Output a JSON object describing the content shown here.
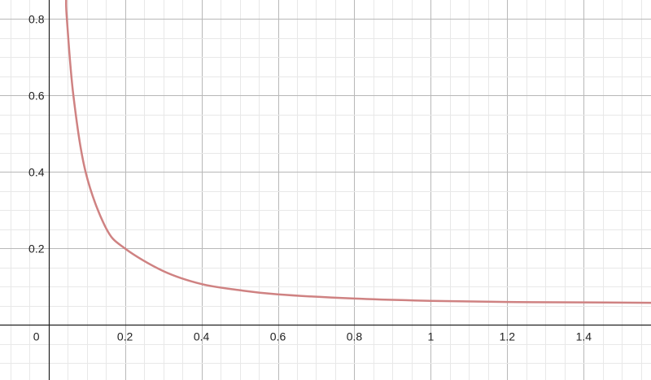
{
  "chart_data": {
    "type": "line",
    "title": "",
    "xlabel": "",
    "ylabel": "",
    "xlim": [
      -0.127,
      1.576
    ],
    "ylim": [
      -0.144,
      0.85
    ],
    "grid": true,
    "minor_grid_step": 0.05,
    "major_grid_step": 0.2,
    "x_ticks": [
      "0.2",
      "0.4",
      "0.6",
      "0.8",
      "1",
      "1.2",
      "1.4"
    ],
    "x_tick_values": [
      0.2,
      0.4,
      0.6,
      0.8,
      1,
      1.2,
      1.4
    ],
    "y_ticks": [
      "0.2",
      "0.4",
      "0.6",
      "0.8"
    ],
    "y_tick_values": [
      0.2,
      0.4,
      0.6,
      0.8
    ],
    "origin_label": "0",
    "series": [
      {
        "color": "#cf8282",
        "points": [
          [
            0.046,
            0.85
          ],
          [
            0.048,
            0.8
          ],
          [
            0.065,
            0.6
          ],
          [
            0.097,
            0.4
          ],
          [
            0.15,
            0.254
          ],
          [
            0.2,
            0.2
          ],
          [
            0.3,
            0.141
          ],
          [
            0.4,
            0.107
          ],
          [
            0.5,
            0.091
          ],
          [
            0.6,
            0.08
          ],
          [
            0.8,
            0.069
          ],
          [
            1.0,
            0.063
          ],
          [
            1.2,
            0.06
          ],
          [
            1.4,
            0.059
          ],
          [
            1.576,
            0.058
          ]
        ]
      }
    ],
    "colors": {
      "minor_grid": "#e8e8e8",
      "major_grid": "#b8b8b8",
      "axis": "#222222"
    }
  }
}
